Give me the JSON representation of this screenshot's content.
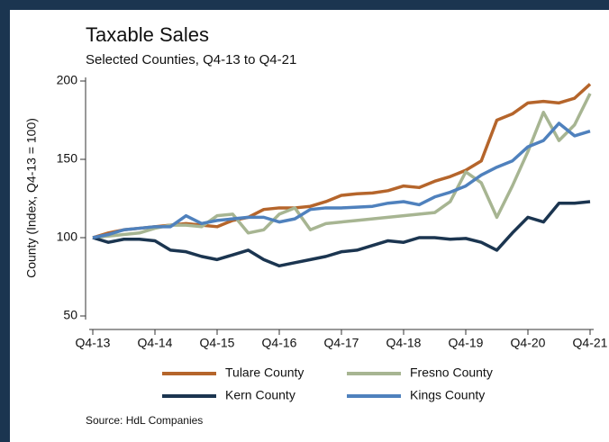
{
  "chart_data": {
    "type": "line",
    "title": "Taxable Sales",
    "subtitle": "Selected Counties, Q4-13 to Q4-21",
    "y_label": "County (Index, Q4-13 = 100)",
    "source": "Source: HdL Companies",
    "categories": [
      "Q4-13",
      null,
      null,
      null,
      "Q4-14",
      null,
      null,
      null,
      "Q4-15",
      null,
      null,
      null,
      "Q4-16",
      null,
      null,
      null,
      "Q4-17",
      null,
      null,
      null,
      "Q4-18",
      null,
      null,
      null,
      "Q4-19",
      null,
      null,
      null,
      "Q4-20",
      null,
      null,
      null,
      "Q4-21"
    ],
    "ylim": [
      50,
      200
    ],
    "yticks": [
      50,
      100,
      150,
      200
    ],
    "grid": false,
    "legend": "bottom",
    "series": [
      {
        "name": "Tulare County",
        "color": "#b5652b",
        "values": [
          100,
          103,
          105,
          106,
          107,
          108,
          109,
          108,
          107,
          111,
          113,
          118,
          119,
          119,
          120,
          123,
          127,
          128,
          128.5,
          130,
          133,
          132,
          136,
          139,
          143,
          149,
          175,
          179,
          186,
          187,
          186,
          189,
          198
        ]
      },
      {
        "name": "Fresno County",
        "color": "#a7b592",
        "values": [
          100,
          101,
          102,
          103,
          106,
          108,
          108,
          107,
          114,
          115,
          103,
          105,
          115,
          119,
          105,
          109,
          110,
          111,
          112,
          113,
          114,
          115,
          116,
          123,
          142,
          135,
          113,
          133,
          155,
          180,
          162,
          172,
          192
        ]
      },
      {
        "name": "Kern County",
        "color": "#1b3550",
        "values": [
          100,
          97,
          99,
          99,
          98,
          92,
          91,
          88,
          86,
          89,
          92,
          86,
          82,
          84,
          86,
          88,
          91,
          92,
          95,
          98,
          97,
          100,
          100,
          99,
          99.5,
          97,
          92,
          103,
          113,
          110,
          122,
          122,
          123
        ]
      },
      {
        "name": "Kings County",
        "color": "#4f81bd",
        "values": [
          100,
          102,
          105,
          106,
          107,
          107,
          114,
          109,
          111,
          112,
          113,
          113,
          110,
          112,
          118,
          119,
          119,
          119.5,
          120,
          122,
          123,
          121,
          126,
          129,
          133,
          140,
          145,
          149,
          158,
          162,
          173,
          165,
          168
        ]
      }
    ]
  }
}
